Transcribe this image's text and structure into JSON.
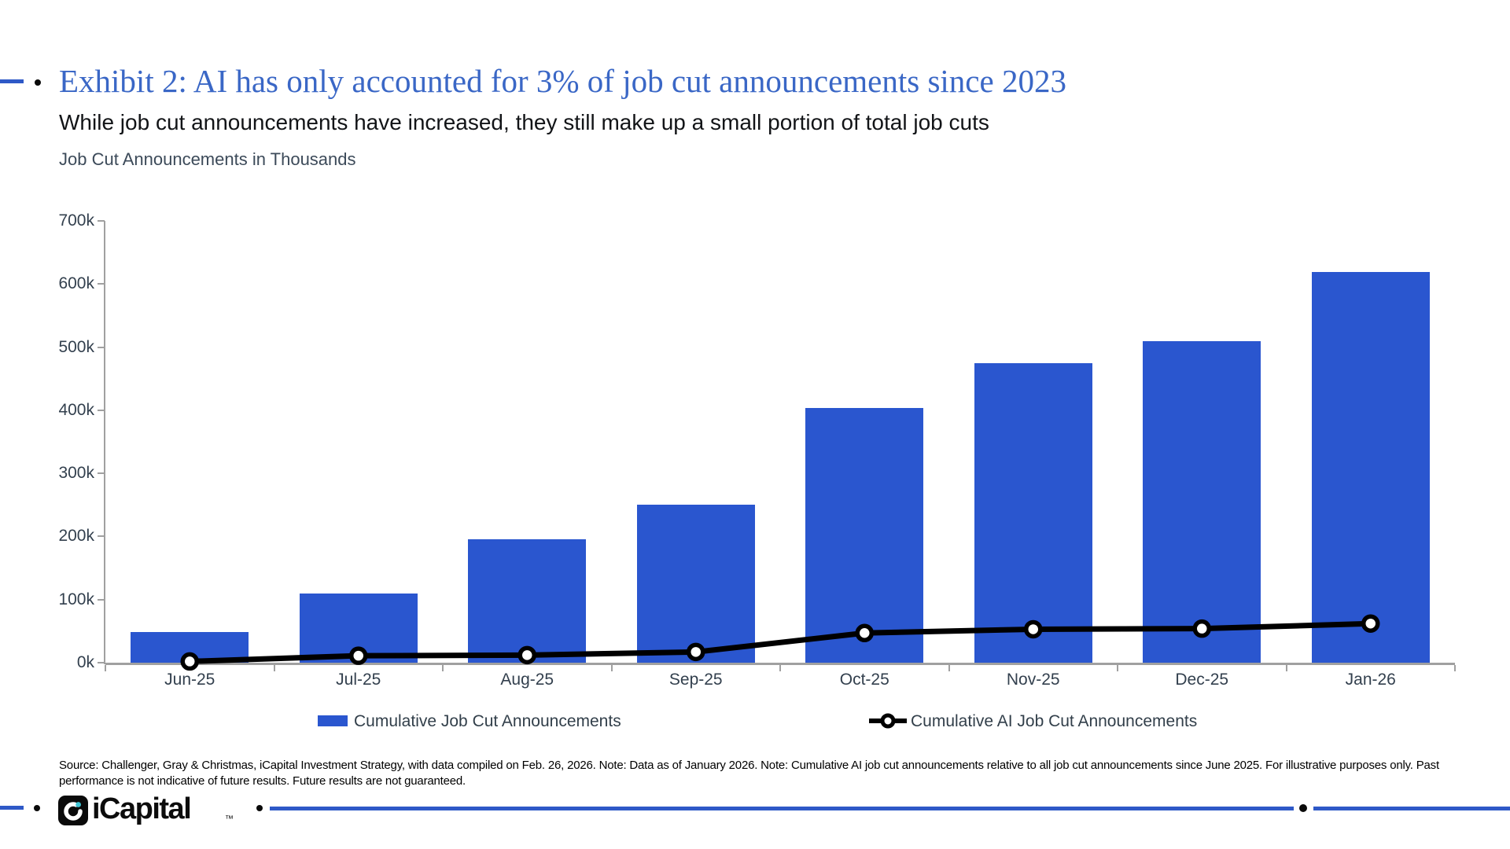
{
  "slide": {
    "exhibit_title": "Exhibit 2: AI has only accounted for 3% of job cut announcements since 2023",
    "subtitle": "While job cut announcements have increased, they still make up a small portion of total job cuts",
    "units_label": "Job Cut Announcements in Thousands",
    "source_note": "Source: Challenger, Gray & Christmas, iCapital Investment Strategy, with data compiled on Feb. 26, 2026. Note: Data as of January 2026. Note: Cumulative AI job cut announcements relative to all job cut announcements since June 2025. For illustrative purposes only. Past performance is not indicative of future results. Future results are not guaranteed.",
    "logo_text": "iCapital",
    "logo_trademark": "™"
  },
  "colors": {
    "title_blue": "#3a67c6",
    "bar_blue": "#2a56cf",
    "line_black": "#000000",
    "accent_rule_blue": "#2e59c7",
    "axis_gray": "#a0a0a0",
    "tick_text": "#33404e",
    "logo_teal_dot": "#3fc4d4"
  },
  "chart_data": {
    "type": "bar",
    "subtype": "bar-with-line-overlay",
    "categories": [
      "Jun-25",
      "Jul-25",
      "Aug-25",
      "Sep-25",
      "Oct-25",
      "Nov-25",
      "Dec-25",
      "Jan-26"
    ],
    "series": [
      {
        "name": "Cumulative Job Cut Announcements",
        "type": "bar",
        "values_thousands": [
          48,
          110,
          196,
          250,
          403,
          475,
          510,
          619
        ]
      },
      {
        "name": "Cumulative AI Job Cut Announcements",
        "type": "line",
        "values_thousands": [
          2,
          11,
          12,
          17,
          47,
          53,
          54,
          62
        ]
      }
    ],
    "title": "Job Cut Announcements in Thousands",
    "xlabel": "",
    "ylabel": "Job Cut Announcements in Thousands",
    "ylim_thousands": [
      0,
      700
    ],
    "ytick_step_thousands": 100,
    "ytick_suffix": "k",
    "grid": false,
    "legend_position": "bottom"
  },
  "legend": {
    "items": [
      {
        "label": "Cumulative Job Cut Announcements",
        "swatch": "blue-bar"
      },
      {
        "label": "Cumulative AI Job Cut Announcements",
        "swatch": "black-line-with-marker"
      }
    ]
  }
}
